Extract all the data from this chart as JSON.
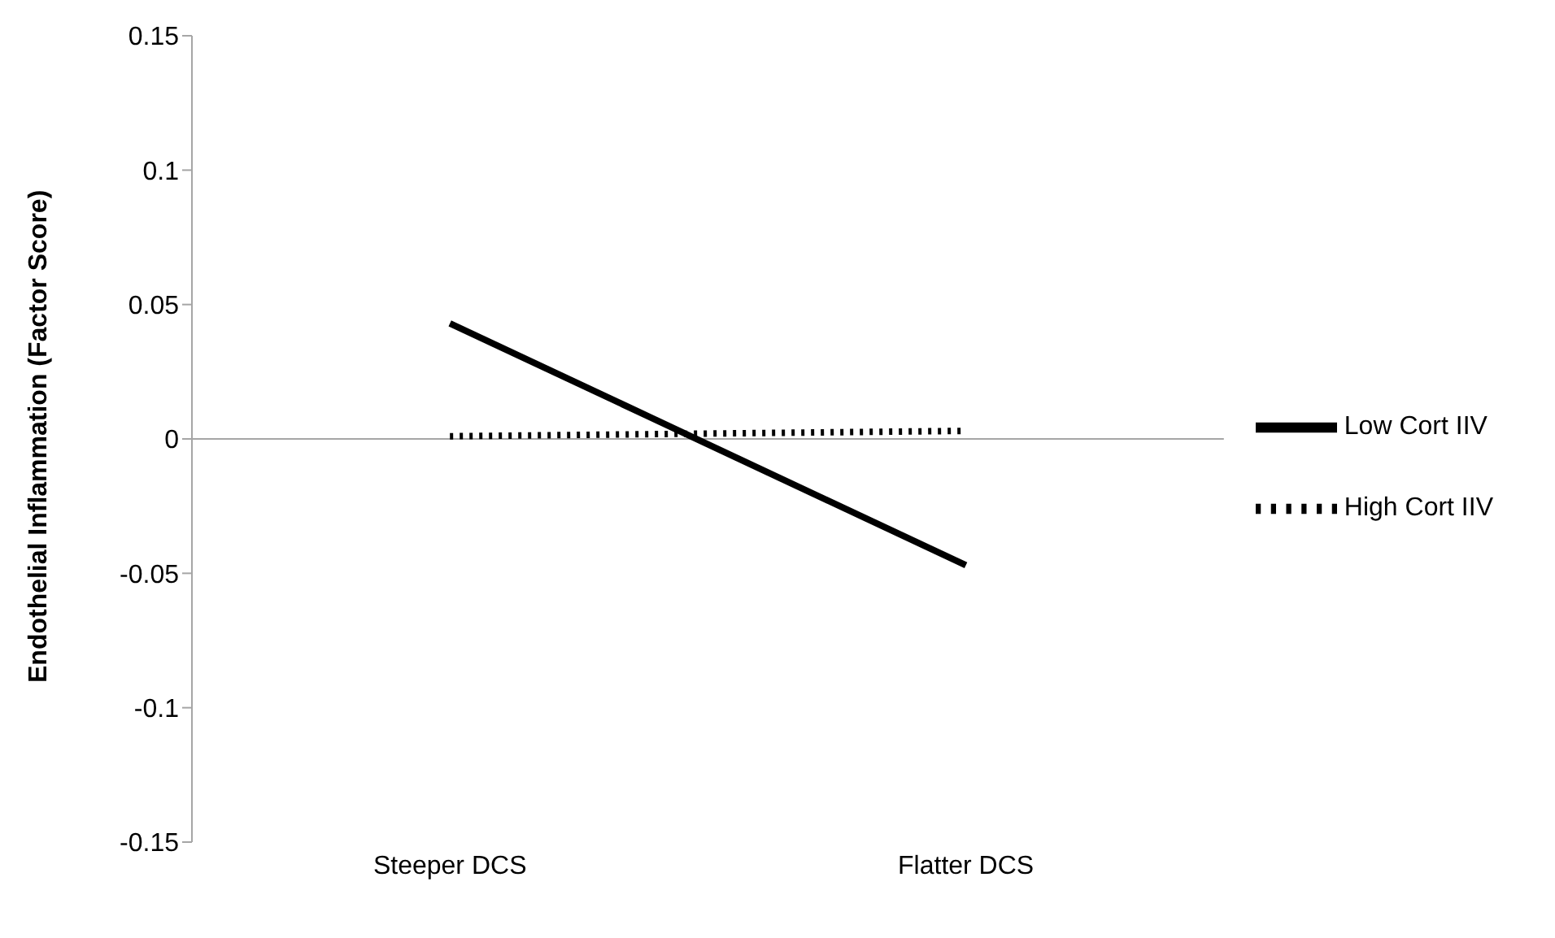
{
  "chart_data": {
    "type": "line",
    "ylabel": "Endothelial Inflammation (Factor Score)",
    "categories": [
      "Steeper DCS",
      "Flatter DCS"
    ],
    "series": [
      {
        "name": "Low Cort IIV",
        "color": "#000000",
        "values": [
          0.043,
          -0.047
        ],
        "line_style": "solid"
      },
      {
        "name": "High Cort IIV",
        "color": "#000000",
        "values": [
          0.001,
          0.003
        ],
        "line_style": "dotted"
      }
    ],
    "ylim": [
      -0.15,
      0.15
    ],
    "yticks": [
      -0.15,
      -0.1,
      -0.05,
      0,
      0.05,
      0.1,
      0.15
    ],
    "grid": false,
    "legend": "right",
    "marker": "none",
    "ref_lines": [
      {
        "axis": "y",
        "value": 0,
        "color": "#a6a6a6"
      }
    ]
  }
}
